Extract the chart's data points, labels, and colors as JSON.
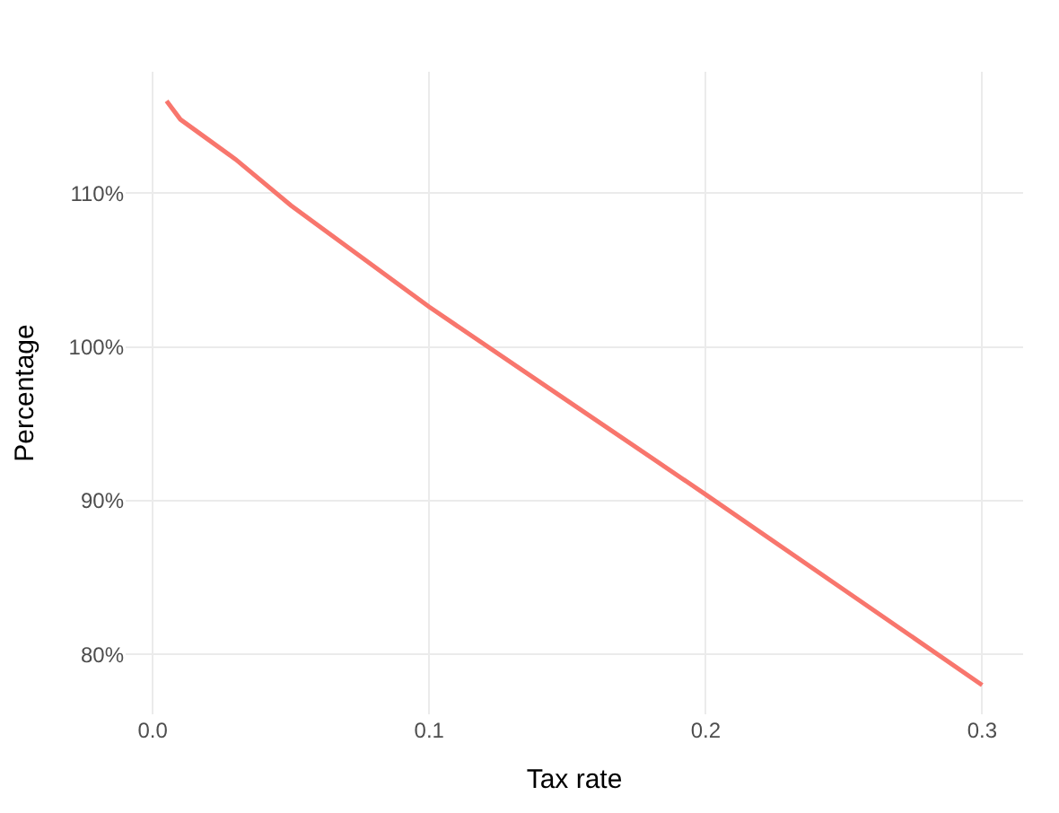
{
  "chart_data": {
    "type": "line",
    "xlabel": "Tax rate",
    "ylabel": "Percentage",
    "x": [
      0.005,
      0.01,
      0.02,
      0.03,
      0.05,
      0.075,
      0.1,
      0.15,
      0.2,
      0.25,
      0.3
    ],
    "series": [
      {
        "color": "#f8766d",
        "values": [
          116.0,
          114.8,
          113.5,
          112.2,
          109.2,
          105.9,
          102.6,
          96.5,
          90.4,
          84.2,
          78.0
        ]
      }
    ],
    "xlim": [
      -0.0098,
      0.3148
    ],
    "ylim": [
      76.1,
      117.9
    ],
    "xticks": [
      {
        "value": 0,
        "label": "0.0"
      },
      0.1,
      0.2,
      0.3
    ],
    "yticks": [
      {
        "value": 80,
        "label": "80%"
      },
      {
        "value": 90,
        "label": "90%"
      },
      {
        "value": 100,
        "label": "100%"
      },
      {
        "value": 110,
        "label": "110%"
      }
    ],
    "grid": true,
    "legend": false,
    "marker": "none",
    "line_style": "solid"
  }
}
